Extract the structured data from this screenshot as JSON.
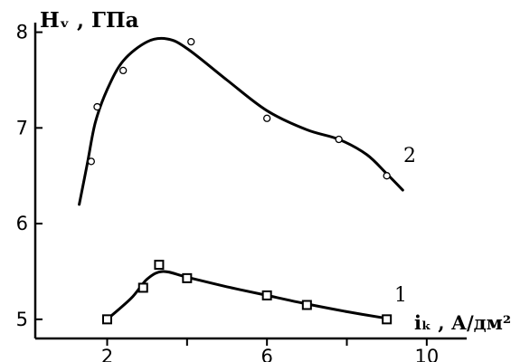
{
  "chart_data": {
    "type": "line",
    "title": "",
    "ylabel": "Hᵥ , ГПа",
    "xlabel": "iₖ , А/дм²",
    "ylim": [
      4.8,
      8.1
    ],
    "xlim": [
      0.2,
      11.0
    ],
    "xticks": [
      2,
      4,
      6,
      8,
      10
    ],
    "xtick_labels": [
      "2",
      "",
      "6",
      "",
      "10"
    ],
    "yticks": [
      5,
      6,
      7,
      8
    ],
    "ytick_labels": [
      "5",
      "6",
      "7",
      "8"
    ],
    "grid": false,
    "series": [
      {
        "name": "1",
        "marker": "square",
        "points": [
          [
            2.0,
            5.0
          ],
          [
            2.9,
            5.33
          ],
          [
            3.3,
            5.57
          ],
          [
            4.0,
            5.43
          ],
          [
            6.0,
            5.25
          ],
          [
            7.0,
            5.15
          ],
          [
            9.0,
            5.0
          ]
        ],
        "fit": [
          [
            2.0,
            5.0
          ],
          [
            2.6,
            5.22
          ],
          [
            3.0,
            5.42
          ],
          [
            3.4,
            5.5
          ],
          [
            4.0,
            5.44
          ],
          [
            5.0,
            5.34
          ],
          [
            6.0,
            5.25
          ],
          [
            7.0,
            5.16
          ],
          [
            8.0,
            5.08
          ],
          [
            9.0,
            5.01
          ]
        ]
      },
      {
        "name": "2",
        "marker": "circle",
        "points": [
          [
            1.6,
            6.65
          ],
          [
            1.75,
            7.22
          ],
          [
            2.4,
            7.6
          ],
          [
            4.1,
            7.9
          ],
          [
            6.0,
            7.1
          ],
          [
            7.8,
            6.88
          ],
          [
            9.0,
            6.5
          ]
        ],
        "fit": [
          [
            1.3,
            6.2
          ],
          [
            1.5,
            6.62
          ],
          [
            1.7,
            7.05
          ],
          [
            2.0,
            7.4
          ],
          [
            2.4,
            7.7
          ],
          [
            3.0,
            7.9
          ],
          [
            3.5,
            7.93
          ],
          [
            4.0,
            7.83
          ],
          [
            5.0,
            7.5
          ],
          [
            6.0,
            7.18
          ],
          [
            7.0,
            6.98
          ],
          [
            7.8,
            6.88
          ],
          [
            8.5,
            6.72
          ],
          [
            9.0,
            6.52
          ],
          [
            9.4,
            6.35
          ]
        ]
      }
    ]
  }
}
